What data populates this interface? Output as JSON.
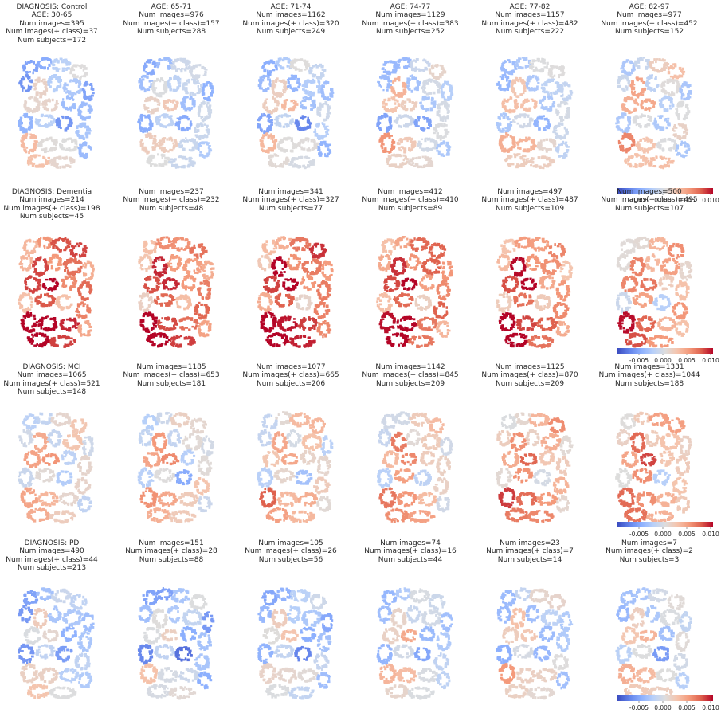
{
  "chart_data": {
    "type": "heatmap",
    "description_kind": "grid of brain-slice attribution maps, rows by diagnosis, columns by age bin",
    "colormap": "coolwarm",
    "colorbar": {
      "vmin": -0.0095,
      "vmax": 0.0105,
      "ticks": [
        "-0.005",
        "0.000",
        "0.005",
        "0.010"
      ]
    },
    "panels": [
      [
        {
          "title_lines": [
            "DIAGNOSIS: Control",
            "AGE: 30-65",
            "Num images=395",
            "Num images(+ class)=37",
            "Num subjects=172"
          ],
          "mean_attribution": -0.0028
        },
        {
          "title_lines": [
            "AGE: 65-71",
            "Num images=976",
            "Num images(+ class)=157",
            "Num subjects=288"
          ],
          "mean_attribution": -0.0025
        },
        {
          "title_lines": [
            "AGE: 71-74",
            "Num images=1162",
            "Num images(+ class)=320",
            "Num subjects=249"
          ],
          "mean_attribution": -0.0022
        },
        {
          "title_lines": [
            "AGE: 74-77",
            "Num images=1129",
            "Num images(+ class)=383",
            "Num subjects=252"
          ],
          "mean_attribution": -0.0015
        },
        {
          "title_lines": [
            "AGE: 77-82",
            "Num images=1157",
            "Num images(+ class)=482",
            "Num subjects=222"
          ],
          "mean_attribution": -0.0012
        },
        {
          "title_lines": [
            "AGE: 82-97",
            "Num images=977",
            "Num images(+ class)=452",
            "Num subjects=152"
          ],
          "mean_attribution": -0.0004
        }
      ],
      [
        {
          "title_lines": [
            "DIAGNOSIS: Dementia",
            "Num images=214",
            "Num images(+ class)=198",
            "Num subjects=45"
          ],
          "mean_attribution": 0.006
        },
        {
          "title_lines": [
            "Num images=237",
            "Num images(+ class)=232",
            "Num subjects=48"
          ],
          "mean_attribution": 0.0055
        },
        {
          "title_lines": [
            "Num images=341",
            "Num images(+ class)=327",
            "Num subjects=77"
          ],
          "mean_attribution": 0.0058
        },
        {
          "title_lines": [
            "Num images=412",
            "Num images(+ class)=410",
            "Num subjects=89"
          ],
          "mean_attribution": 0.0055
        },
        {
          "title_lines": [
            "Num images=497",
            "Num images(+ class)=487",
            "Num subjects=109"
          ],
          "mean_attribution": 0.0052
        },
        {
          "title_lines": [
            "Num images=500",
            "Num images(+ class)=495",
            "Num subjects=107"
          ],
          "mean_attribution": 0.003
        }
      ],
      [
        {
          "title_lines": [
            "DIAGNOSIS: MCI",
            "Num images=1065",
            "Num images(+ class)=521",
            "Num subjects=148"
          ],
          "mean_attribution": 0.0005
        },
        {
          "title_lines": [
            "Num images=1185",
            "Num images(+ class)=653",
            "Num subjects=181"
          ],
          "mean_attribution": 0.0002
        },
        {
          "title_lines": [
            "Num images=1077",
            "Num images(+ class)=665",
            "Num subjects=206"
          ],
          "mean_attribution": 0.001
        },
        {
          "title_lines": [
            "Num images=1142",
            "Num images(+ class)=845",
            "Num subjects=209"
          ],
          "mean_attribution": 0.0018
        },
        {
          "title_lines": [
            "Num images=1125",
            "Num images(+ class)=870",
            "Num subjects=209"
          ],
          "mean_attribution": 0.0025
        },
        {
          "title_lines": [
            "Num images=1331",
            "Num images(+ class)=1044",
            "Num subjects=188"
          ],
          "mean_attribution": 0.0028
        }
      ],
      [
        {
          "title_lines": [
            "DIAGNOSIS: PD",
            "Num images=490",
            "Num images(+ class)=44",
            "Num subjects=213"
          ],
          "mean_attribution": -0.003
        },
        {
          "title_lines": [
            "Num images=151",
            "Num images(+ class)=28",
            "Num subjects=88"
          ],
          "mean_attribution": -0.003
        },
        {
          "title_lines": [
            "Num images=105",
            "Num images(+ class)=26",
            "Num subjects=56"
          ],
          "mean_attribution": -0.0028
        },
        {
          "title_lines": [
            "Num images=74",
            "Num images(+ class)=16",
            "Num subjects=44"
          ],
          "mean_attribution": -0.0018
        },
        {
          "title_lines": [
            "Num images=23",
            "Num images(+ class)=7",
            "Num subjects=14"
          ],
          "mean_attribution": -0.0015
        },
        {
          "title_lines": [
            "Num images=7",
            "Num images(+ class)=2",
            "Num subjects=3"
          ],
          "mean_attribution": -0.001
        }
      ]
    ]
  }
}
